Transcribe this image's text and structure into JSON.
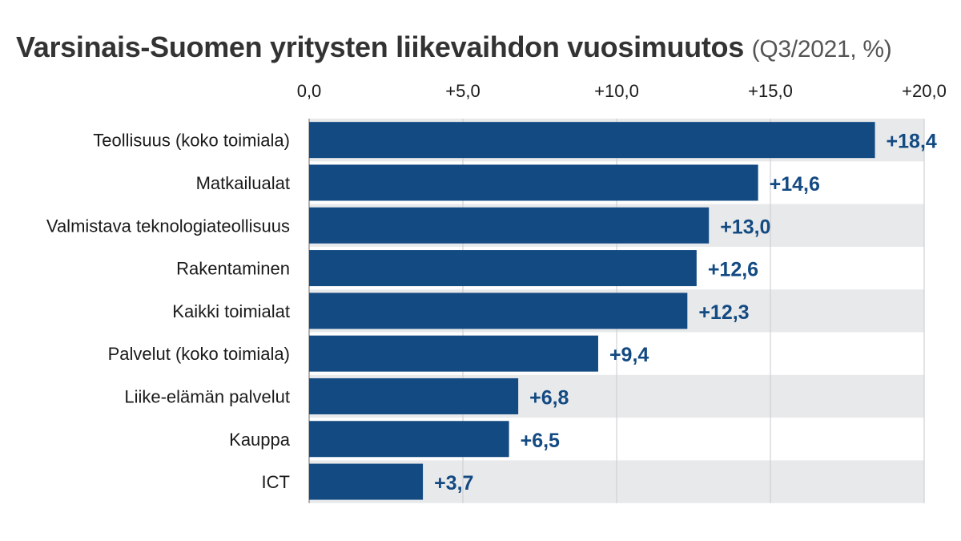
{
  "chart_data": {
    "type": "bar",
    "orientation": "horizontal",
    "title": "Varsinais-Suomen yritysten liikevaihdon vuosimuutos",
    "title_unit": "(Q3/2021, %)",
    "categories": [
      "Teollisuus (koko toimiala)",
      "Matkailualat",
      "Valmistava teknologiateollisuus",
      "Rakentaminen",
      "Kaikki toimialat",
      "Palvelut (koko toimiala)",
      "Liike-elämän palvelut",
      "Kauppa",
      "ICT"
    ],
    "values": [
      18.4,
      14.6,
      13.0,
      12.6,
      12.3,
      9.4,
      6.8,
      6.5,
      3.7
    ],
    "value_labels": [
      "+18,4",
      "+14,6",
      "+13,0",
      "+12,6",
      "+12,3",
      "+9,4",
      "+6,8",
      "+6,5",
      "+3,7"
    ],
    "xticks": [
      0,
      5,
      10,
      15,
      20
    ],
    "xtick_labels": [
      "0,0",
      "+5,0",
      "+10,0",
      "+15,0",
      "+20,0"
    ],
    "xlim": [
      0,
      20
    ],
    "xlabel": "",
    "ylabel": "",
    "grid": true,
    "bar_color": "#134a82",
    "label_color": "#134a82",
    "band_color": "#e8e9eb"
  }
}
